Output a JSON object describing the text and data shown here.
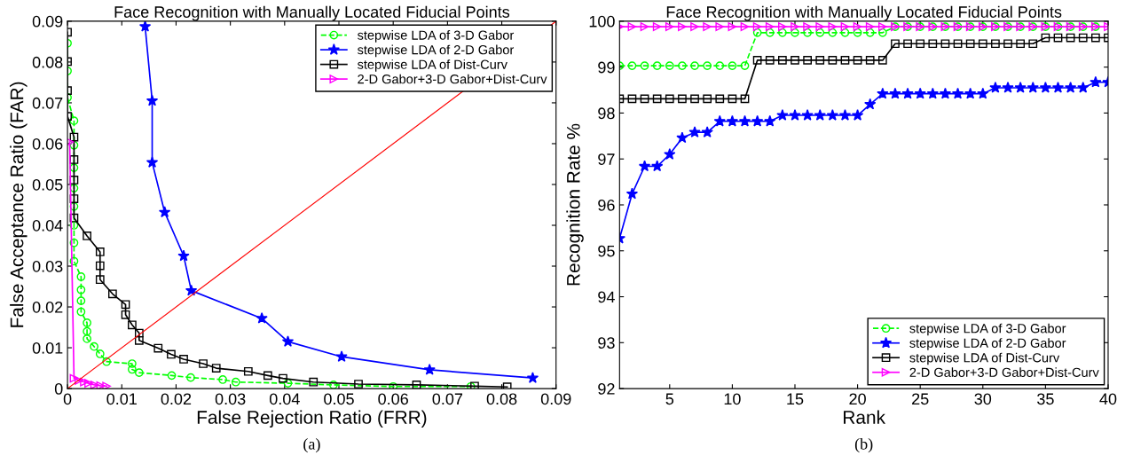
{
  "chart_data": [
    {
      "type": "line",
      "title": "Face Recognition with Manually Located Fiducial Points",
      "xlabel": "False Rejection Ratio (FRR)",
      "ylabel": "False Acceptance Ratio (FAR)",
      "xlim": [
        0,
        0.09
      ],
      "ylim": [
        0,
        0.09
      ],
      "xticks": [
        0,
        0.01,
        0.02,
        0.03,
        0.04,
        0.05,
        0.06,
        0.07,
        0.08,
        0.09
      ],
      "yticks": [
        0,
        0.01,
        0.02,
        0.03,
        0.04,
        0.05,
        0.06,
        0.07,
        0.08,
        0.09
      ],
      "grid": false,
      "legend": "top right",
      "annotations": [
        "(a)"
      ],
      "series": [
        {
          "name": "stepwise LDA of 3-D Gabor",
          "color": "#00ff00",
          "marker": "circle",
          "line_style": "dashed",
          "x": [
            0,
            0,
            0,
            0.0012,
            0.0012,
            0.0012,
            0.0012,
            0.0012,
            0.0012,
            0.0012,
            0.0012,
            0.0025,
            0.0025,
            0.0025,
            0.0025,
            0.0036,
            0.0036,
            0.0036,
            0.0049,
            0.006,
            0.0072,
            0.0119,
            0.0119,
            0.0132,
            0.0192,
            0.0227,
            0.0286,
            0.031,
            0.0406,
            0.049,
            0.06,
            0.0743
          ],
          "values": [
            0.0846,
            0.0778,
            0.0713,
            0.0656,
            0.0596,
            0.0541,
            0.0491,
            0.0446,
            0.04,
            0.0357,
            0.0312,
            0.0274,
            0.0242,
            0.0215,
            0.0188,
            0.0161,
            0.014,
            0.0122,
            0.0103,
            0.0085,
            0.0066,
            0.0061,
            0.0047,
            0.0039,
            0.0032,
            0.0027,
            0.0022,
            0.0016,
            0.0013,
            0.0009,
            0.0005,
            0.0005
          ]
        },
        {
          "name": "stepwise LDA of 2-D Gabor",
          "color": "#0000ff",
          "marker": "star",
          "line_style": "solid",
          "x": [
            0.0143,
            0.0156,
            0.0156,
            0.0179,
            0.0214,
            0.0228,
            0.0358,
            0.0406,
            0.0505,
            0.0667,
            0.0857
          ],
          "values": [
            0.0887,
            0.0705,
            0.0554,
            0.0432,
            0.0325,
            0.024,
            0.0172,
            0.0115,
            0.0078,
            0.0046,
            0.0026
          ]
        },
        {
          "name": "stepwise LDA of Dist-Curv",
          "color": "#000000",
          "marker": "square",
          "line_style": "solid",
          "x": [
            0,
            0,
            0,
            0,
            0.0012,
            0.0012,
            0.0012,
            0.0012,
            0.0012,
            0.0036,
            0.006,
            0.006,
            0.006,
            0.0083,
            0.0107,
            0.0107,
            0.0119,
            0.0132,
            0.0132,
            0.0167,
            0.0191,
            0.0214,
            0.025,
            0.0274,
            0.0333,
            0.0369,
            0.0397,
            0.0453,
            0.0536,
            0.0643,
            0.075,
            0.081
          ],
          "values": [
            0.0873,
            0.0801,
            0.073,
            0.0667,
            0.0616,
            0.0561,
            0.0511,
            0.0465,
            0.0418,
            0.0374,
            0.0335,
            0.0301,
            0.0267,
            0.0232,
            0.0206,
            0.0181,
            0.0156,
            0.0136,
            0.0118,
            0.0099,
            0.0084,
            0.0072,
            0.0061,
            0.005,
            0.0042,
            0.0032,
            0.0025,
            0.0016,
            0.0011,
            0.0009,
            0.0006,
            0.0004
          ]
        },
        {
          "name": "2-D Gabor+3-D Gabor+Dist-Curv",
          "color": "#ff00ff",
          "marker": "triangle",
          "line_style": "solid",
          "x": [
            0.0004,
            0.0012,
            0.0021,
            0.0031,
            0.0039,
            0.005,
            0.0061,
            0.0072
          ],
          "values": [
            0.0604,
            0.0025,
            0.002,
            0.0016,
            0.0013,
            0.0009,
            0.0007,
            0.0006
          ]
        },
        {
          "color": "#ff0000",
          "marker": "none",
          "line_style": "solid",
          "x": [
            0,
            0.09
          ],
          "values": [
            0,
            0.09
          ]
        }
      ]
    },
    {
      "type": "line",
      "title": "Face Recognition with Manually Located Fiducial Points",
      "xlabel": "Rank",
      "ylabel": "Recognition Rate %",
      "xlim": [
        1,
        40
      ],
      "ylim": [
        92,
        100
      ],
      "xticks": [
        5,
        10,
        15,
        20,
        25,
        30,
        35,
        40
      ],
      "yticks": [
        92,
        93,
        94,
        95,
        96,
        97,
        98,
        99,
        100
      ],
      "grid": false,
      "legend": "bottom right",
      "annotations": [
        "(b)"
      ],
      "x": [
        1,
        2,
        3,
        4,
        5,
        6,
        7,
        8,
        9,
        10,
        11,
        12,
        13,
        14,
        15,
        16,
        17,
        18,
        19,
        20,
        21,
        22,
        23,
        24,
        25,
        26,
        27,
        28,
        29,
        30,
        31,
        32,
        33,
        34,
        35,
        36,
        37,
        38,
        39,
        40
      ],
      "series": [
        {
          "name": "stepwise LDA of 3-D Gabor",
          "color": "#00ff00",
          "marker": "circle",
          "line_style": "dashed",
          "values": [
            99.03,
            99.03,
            99.03,
            99.03,
            99.03,
            99.03,
            99.03,
            99.03,
            99.03,
            99.03,
            99.03,
            99.75,
            99.75,
            99.75,
            99.75,
            99.75,
            99.75,
            99.75,
            99.75,
            99.75,
            99.75,
            99.75,
            99.88,
            99.88,
            99.88,
            99.88,
            99.88,
            99.88,
            99.88,
            99.88,
            99.88,
            99.88,
            99.88,
            99.88,
            99.88,
            99.88,
            99.88,
            99.88,
            99.88,
            null
          ]
        },
        {
          "name": "stepwise LDA of 2-D Gabor",
          "color": "#0000ff",
          "marker": "star",
          "line_style": "solid",
          "values": [
            95.27,
            96.24,
            96.84,
            96.84,
            97.1,
            97.46,
            97.58,
            97.58,
            97.82,
            97.82,
            97.82,
            97.82,
            97.82,
            97.95,
            97.95,
            97.95,
            97.95,
            97.95,
            97.95,
            97.95,
            98.19,
            98.42,
            98.42,
            98.42,
            98.42,
            98.42,
            98.42,
            98.42,
            98.42,
            98.42,
            98.55,
            98.55,
            98.55,
            98.55,
            98.55,
            98.55,
            98.55,
            98.55,
            98.67,
            98.67
          ]
        },
        {
          "name": "stepwise LDA of Dist-Curv",
          "color": "#000000",
          "marker": "square",
          "line_style": "solid",
          "values": [
            98.31,
            98.31,
            98.31,
            98.31,
            98.31,
            98.31,
            98.31,
            98.31,
            98.31,
            98.31,
            98.31,
            99.15,
            99.15,
            99.15,
            99.15,
            99.15,
            99.15,
            99.15,
            99.15,
            99.15,
            99.15,
            99.15,
            99.51,
            99.51,
            99.51,
            99.51,
            99.51,
            99.51,
            99.51,
            99.51,
            99.51,
            99.51,
            99.51,
            99.51,
            99.64,
            99.64,
            99.64,
            99.64,
            99.64,
            99.64
          ]
        },
        {
          "name": "2-D Gabor+3-D Gabor+Dist-Curv",
          "color": "#ff00ff",
          "marker": "triangle",
          "line_style": "solid",
          "values": [
            99.88,
            99.88,
            99.88,
            99.88,
            99.88,
            99.88,
            99.88,
            99.88,
            99.88,
            99.88,
            99.88,
            99.88,
            99.88,
            99.88,
            99.88,
            99.88,
            99.88,
            99.88,
            99.88,
            99.88,
            99.88,
            99.88,
            99.88,
            99.88,
            99.88,
            99.88,
            99.88,
            99.88,
            99.88,
            99.88,
            99.88,
            99.88,
            99.88,
            99.88,
            99.88,
            99.88,
            99.88,
            99.88,
            99.88,
            99.88
          ]
        }
      ]
    }
  ]
}
